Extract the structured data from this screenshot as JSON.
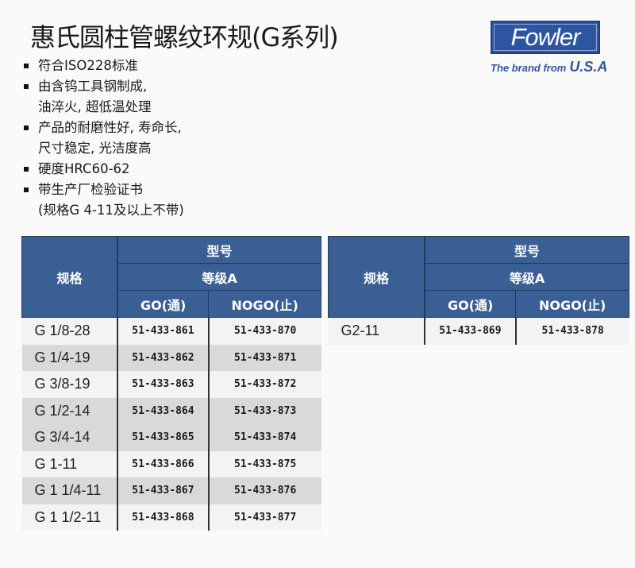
{
  "title": "惠氏圆柱管螺纹环规(G系列)",
  "bullets": [
    [
      "符合ISO228标准"
    ],
    [
      "由含钨工具钢制成,",
      "油淬火, 超低温处理"
    ],
    [
      "产品的耐磨性好, 寿命长,",
      "尺寸稳定, 光洁度高"
    ],
    [
      "硬度HRC60-62"
    ],
    [
      "带生产厂检验证书",
      "(规格G 4-11及以上不带)"
    ]
  ],
  "logo": {
    "brand": "Fowler",
    "tagline": "The brand from",
    "country": "U.S.A",
    "color": "#2d55a0"
  },
  "table_headers": {
    "spec": "规格",
    "model": "型号",
    "grade": "等级A",
    "go": "GO(通)",
    "nogo": "NOGO(止)",
    "color": "#3a5f95"
  },
  "table_left": [
    {
      "spec": "G 1/8-28",
      "go": "51-433-861",
      "nogo": "51-433-870"
    },
    {
      "spec": "G 1/4-19",
      "go": "51-433-862",
      "nogo": "51-433-871"
    },
    {
      "spec": "G 3/8-19",
      "go": "51-433-863",
      "nogo": "51-433-872"
    },
    {
      "spec": "G 1/2-14",
      "go": "51-433-864",
      "nogo": "51-433-873"
    },
    {
      "spec": "G 3/4-14",
      "go": "51-433-865",
      "nogo": "51-433-874"
    },
    {
      "spec": "G 1-11",
      "go": "51-433-866",
      "nogo": "51-433-875"
    },
    {
      "spec": "G 1 1/4-11",
      "go": "51-433-867",
      "nogo": "51-433-876"
    },
    {
      "spec": "G 1 1/2-11",
      "go": "51-433-868",
      "nogo": "51-433-877"
    }
  ],
  "table_right": [
    {
      "spec": "G2-11",
      "go": "51-433-869",
      "nogo": "51-433-878"
    }
  ]
}
